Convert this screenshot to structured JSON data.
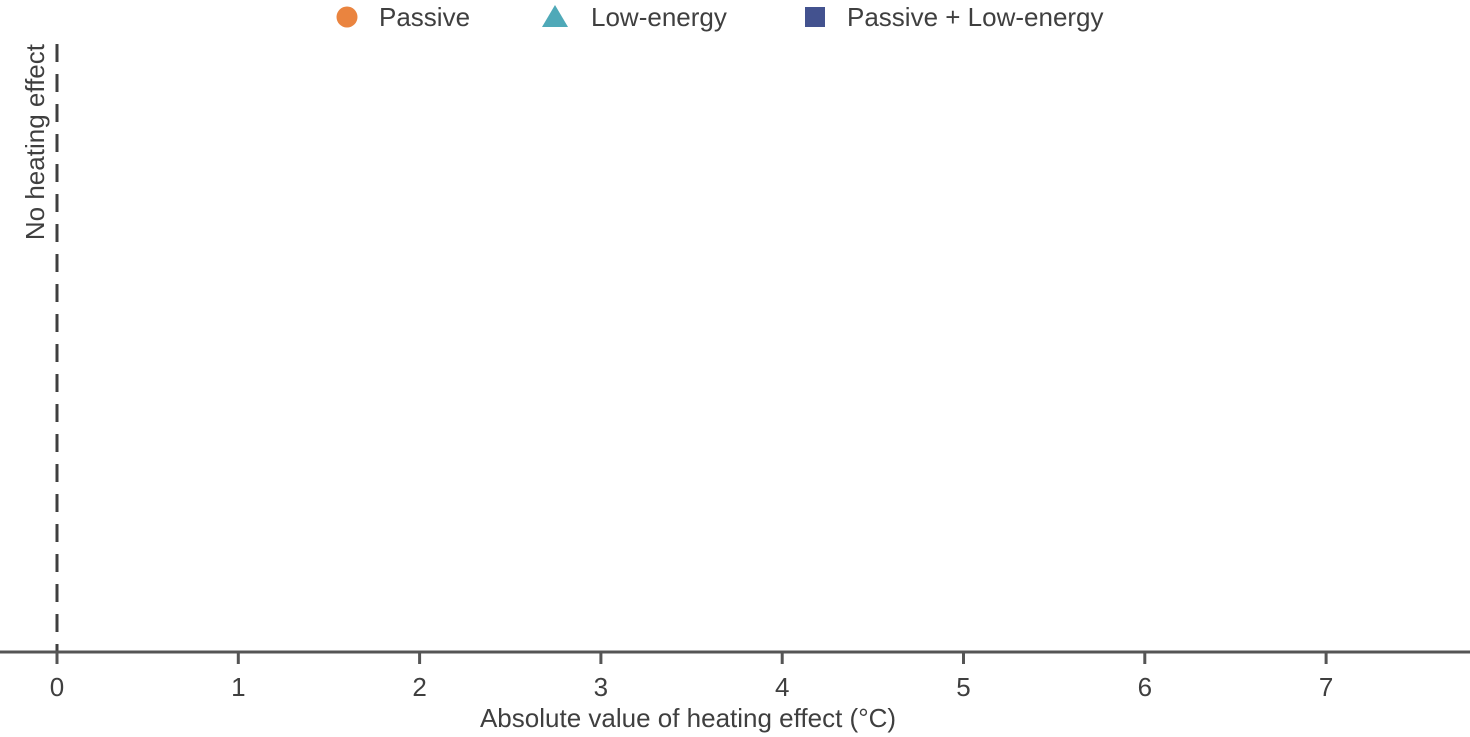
{
  "chart_data": {
    "type": "scatter",
    "title": "",
    "xlabel": "Absolute value of heating effect (°C)",
    "ylabel": "",
    "xlim": [
      -0.3,
      7.8
    ],
    "x_ticks": [
      "0",
      "1",
      "2",
      "3",
      "4",
      "5",
      "6",
      "7"
    ],
    "grid": false,
    "legend_position": "top-center",
    "series": [
      {
        "name": "Passive",
        "marker": "circle",
        "color": "#ea843f",
        "points": []
      },
      {
        "name": "Low-energy",
        "marker": "triangle",
        "color": "#4fa9b8",
        "points": []
      },
      {
        "name": "Passive + Low-energy",
        "marker": "square",
        "color": "#43528f",
        "points": []
      }
    ],
    "reference_line": {
      "x": 0,
      "style": "dashed",
      "label": "No heating effect"
    },
    "axis_color": "#555555",
    "text_color": "#3f3f3f"
  }
}
